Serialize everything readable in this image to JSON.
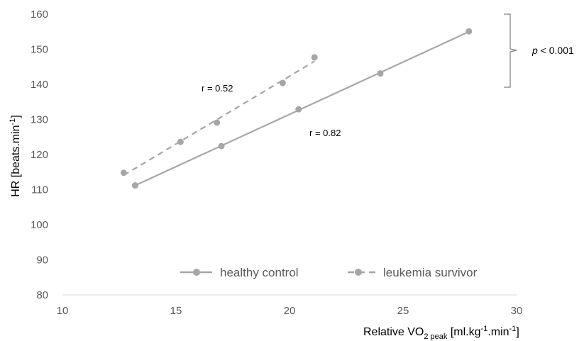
{
  "chart_data": {
    "type": "scatter",
    "xlabel": "Relative VO",
    "xlabel_sub": "2 peak",
    "xlabel_tail": " [ml.kg",
    "xlabel_sup1": "-1",
    "xlabel_tail2": ".min",
    "xlabel_sup2": "-1",
    "xlabel_end": "]",
    "ylabel": "HR [beats.min",
    "ylabel_sup": "-1",
    "ylabel_end": "]",
    "xlim": [
      10,
      30
    ],
    "ylim": [
      80,
      160
    ],
    "xticks": [
      "10",
      "15",
      "20",
      "25",
      "30"
    ],
    "yticks": [
      "80",
      "90",
      "100",
      "110",
      "120",
      "130",
      "140",
      "150",
      "160"
    ],
    "grid": false,
    "legend_position": "bottom",
    "series": [
      {
        "name": "healthy control",
        "style": "solid",
        "color": "#a6a6a6",
        "x": [
          13.2,
          17.0,
          20.4,
          24.0,
          27.9
        ],
        "y": [
          111.2,
          122.4,
          132.9,
          143.1,
          155.1
        ],
        "r_label": "r = 0.82"
      },
      {
        "name": "leukemia survivor",
        "style": "dashed",
        "color": "#a6a6a6",
        "x": [
          12.7,
          15.2,
          16.8,
          19.7,
          21.1
        ],
        "y": [
          114.8,
          123.6,
          129.1,
          140.4,
          147.7
        ],
        "r_label": "r = 0.52"
      }
    ],
    "pvalue": {
      "prefix": "p",
      "text": " < 0.001"
    }
  }
}
